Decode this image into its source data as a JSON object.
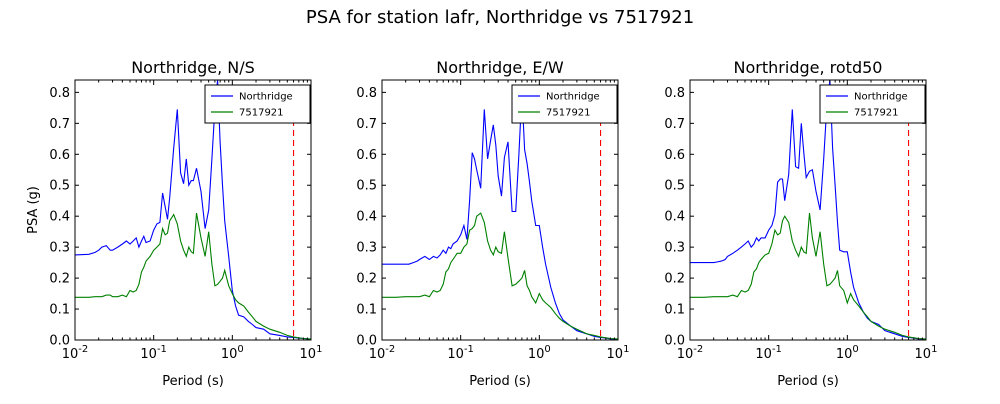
{
  "figure": {
    "suptitle": "PSA for station lafr, Northridge vs 7517921"
  },
  "chart_data": [
    {
      "type": "line",
      "title": "Northridge, N/S",
      "xlabel": "Period (s)",
      "ylabel": "PSA (g)",
      "xscale": "log",
      "xlim": [
        0.01,
        10
      ],
      "ylim": [
        0,
        0.84
      ],
      "x_tick_labels": [
        "10^-2",
        "10^-1",
        "10^0",
        "10^1"
      ],
      "y_ticks": [
        0.0,
        0.1,
        0.2,
        0.3,
        0.4,
        0.5,
        0.6,
        0.7,
        0.8
      ],
      "legend_position": "top-right",
      "reference_line": {
        "x": 6.0,
        "color": "#ff0000",
        "style": "dashed"
      },
      "series": [
        {
          "name": "Northridge",
          "color": "#0000ff",
          "x": [
            0.01,
            0.015,
            0.018,
            0.02,
            0.022,
            0.025,
            0.028,
            0.03,
            0.035,
            0.04,
            0.045,
            0.05,
            0.055,
            0.06,
            0.065,
            0.07,
            0.075,
            0.08,
            0.09,
            0.1,
            0.11,
            0.12,
            0.13,
            0.14,
            0.15,
            0.16,
            0.18,
            0.2,
            0.22,
            0.24,
            0.26,
            0.28,
            0.3,
            0.32,
            0.35,
            0.4,
            0.45,
            0.5,
            0.55,
            0.6,
            0.65,
            0.7,
            0.75,
            0.8,
            0.9,
            1.0,
            1.1,
            1.2,
            1.4,
            1.6,
            1.8,
            2.0,
            2.5,
            3.0,
            4.0,
            5.0,
            6.0,
            7.0,
            8.0,
            10.0
          ],
          "y": [
            0.275,
            0.277,
            0.283,
            0.29,
            0.3,
            0.305,
            0.29,
            0.29,
            0.3,
            0.31,
            0.32,
            0.31,
            0.32,
            0.33,
            0.3,
            0.32,
            0.335,
            0.315,
            0.32,
            0.355,
            0.375,
            0.38,
            0.475,
            0.43,
            0.39,
            0.46,
            0.62,
            0.745,
            0.54,
            0.505,
            0.585,
            0.5,
            0.515,
            0.515,
            0.555,
            0.48,
            0.36,
            0.42,
            0.585,
            0.75,
            0.84,
            0.64,
            0.5,
            0.385,
            0.27,
            0.16,
            0.11,
            0.08,
            0.075,
            0.06,
            0.05,
            0.04,
            0.035,
            0.02,
            0.015,
            0.01,
            0.008,
            0.006,
            0.005,
            0.003
          ]
        },
        {
          "name": "7517921",
          "color": "#008000",
          "x": [
            0.01,
            0.015,
            0.018,
            0.02,
            0.022,
            0.025,
            0.028,
            0.03,
            0.035,
            0.04,
            0.045,
            0.05,
            0.055,
            0.06,
            0.065,
            0.07,
            0.075,
            0.08,
            0.09,
            0.1,
            0.11,
            0.12,
            0.13,
            0.14,
            0.15,
            0.16,
            0.18,
            0.2,
            0.22,
            0.24,
            0.26,
            0.28,
            0.3,
            0.32,
            0.35,
            0.4,
            0.45,
            0.5,
            0.55,
            0.6,
            0.65,
            0.7,
            0.75,
            0.8,
            0.9,
            1.0,
            1.1,
            1.2,
            1.4,
            1.6,
            1.8,
            2.0,
            2.5,
            3.0,
            4.0,
            5.0,
            6.0,
            7.0,
            8.0,
            10.0
          ],
          "y": [
            0.138,
            0.138,
            0.14,
            0.14,
            0.14,
            0.145,
            0.145,
            0.14,
            0.14,
            0.145,
            0.14,
            0.16,
            0.155,
            0.16,
            0.18,
            0.22,
            0.235,
            0.255,
            0.27,
            0.29,
            0.3,
            0.31,
            0.36,
            0.34,
            0.345,
            0.385,
            0.405,
            0.375,
            0.32,
            0.29,
            0.27,
            0.3,
            0.285,
            0.28,
            0.41,
            0.33,
            0.27,
            0.35,
            0.245,
            0.175,
            0.18,
            0.19,
            0.2,
            0.225,
            0.175,
            0.15,
            0.13,
            0.12,
            0.11,
            0.09,
            0.075,
            0.06,
            0.045,
            0.035,
            0.025,
            0.015,
            0.01,
            0.007,
            0.005,
            0.003
          ]
        }
      ]
    },
    {
      "type": "line",
      "title": "Northridge, E/W",
      "xlabel": "Period (s)",
      "ylabel": "",
      "xscale": "log",
      "xlim": [
        0.01,
        10
      ],
      "ylim": [
        0,
        0.84
      ],
      "x_tick_labels": [
        "10^-2",
        "10^-1",
        "10^0",
        "10^1"
      ],
      "y_ticks": [
        0.0,
        0.1,
        0.2,
        0.3,
        0.4,
        0.5,
        0.6,
        0.7,
        0.8
      ],
      "legend_position": "top-right",
      "reference_line": {
        "x": 6.0,
        "color": "#ff0000",
        "style": "dashed"
      },
      "series": [
        {
          "name": "Northridge",
          "color": "#0000ff",
          "x": [
            0.01,
            0.015,
            0.02,
            0.022,
            0.025,
            0.028,
            0.03,
            0.035,
            0.04,
            0.045,
            0.05,
            0.055,
            0.06,
            0.065,
            0.07,
            0.075,
            0.08,
            0.09,
            0.1,
            0.11,
            0.12,
            0.13,
            0.14,
            0.15,
            0.16,
            0.18,
            0.2,
            0.22,
            0.24,
            0.26,
            0.28,
            0.3,
            0.33,
            0.36,
            0.4,
            0.45,
            0.5,
            0.55,
            0.6,
            0.65,
            0.7,
            0.75,
            0.8,
            0.9,
            1.0,
            1.1,
            1.2,
            1.4,
            1.6,
            1.8,
            2.0,
            2.5,
            3.0,
            4.0,
            5.0,
            6.0,
            7.0,
            8.0,
            10.0
          ],
          "y": [
            0.245,
            0.245,
            0.245,
            0.245,
            0.25,
            0.255,
            0.26,
            0.27,
            0.26,
            0.27,
            0.265,
            0.275,
            0.29,
            0.28,
            0.3,
            0.295,
            0.31,
            0.32,
            0.34,
            0.37,
            0.325,
            0.45,
            0.605,
            0.585,
            0.55,
            0.49,
            0.745,
            0.585,
            0.645,
            0.695,
            0.63,
            0.53,
            0.465,
            0.59,
            0.64,
            0.415,
            0.415,
            0.6,
            0.8,
            0.615,
            0.57,
            0.51,
            0.45,
            0.37,
            0.37,
            0.3,
            0.245,
            0.17,
            0.12,
            0.085,
            0.065,
            0.045,
            0.03,
            0.02,
            0.012,
            0.008,
            0.006,
            0.004,
            0.003
          ]
        },
        {
          "name": "7517921",
          "color": "#008000",
          "x": [
            0.01,
            0.015,
            0.02,
            0.022,
            0.025,
            0.028,
            0.03,
            0.035,
            0.04,
            0.045,
            0.05,
            0.055,
            0.06,
            0.065,
            0.07,
            0.075,
            0.08,
            0.09,
            0.1,
            0.11,
            0.12,
            0.13,
            0.14,
            0.15,
            0.16,
            0.18,
            0.2,
            0.22,
            0.24,
            0.26,
            0.28,
            0.3,
            0.33,
            0.36,
            0.4,
            0.45,
            0.5,
            0.55,
            0.6,
            0.65,
            0.7,
            0.75,
            0.8,
            0.9,
            1.0,
            1.1,
            1.2,
            1.4,
            1.6,
            1.8,
            2.0,
            2.5,
            3.0,
            4.0,
            5.0,
            6.0,
            7.0,
            8.0,
            10.0
          ],
          "y": [
            0.138,
            0.138,
            0.14,
            0.14,
            0.14,
            0.14,
            0.14,
            0.145,
            0.14,
            0.16,
            0.155,
            0.16,
            0.18,
            0.22,
            0.23,
            0.25,
            0.26,
            0.28,
            0.28,
            0.3,
            0.31,
            0.355,
            0.36,
            0.37,
            0.4,
            0.41,
            0.38,
            0.32,
            0.29,
            0.275,
            0.3,
            0.285,
            0.28,
            0.35,
            0.265,
            0.175,
            0.18,
            0.19,
            0.2,
            0.225,
            0.175,
            0.16,
            0.14,
            0.12,
            0.15,
            0.13,
            0.12,
            0.105,
            0.085,
            0.07,
            0.06,
            0.045,
            0.035,
            0.02,
            0.015,
            0.01,
            0.007,
            0.005,
            0.003
          ]
        }
      ]
    },
    {
      "type": "line",
      "title": "Northridge, rotd50",
      "xlabel": "Period (s)",
      "ylabel": "",
      "xscale": "log",
      "xlim": [
        0.01,
        10
      ],
      "ylim": [
        0,
        0.84
      ],
      "x_tick_labels": [
        "10^-2",
        "10^-1",
        "10^0",
        "10^1"
      ],
      "y_ticks": [
        0.0,
        0.1,
        0.2,
        0.3,
        0.4,
        0.5,
        0.6,
        0.7,
        0.8
      ],
      "legend_position": "top-right",
      "reference_line": {
        "x": 6.0,
        "color": "#ff0000",
        "style": "dashed"
      },
      "series": [
        {
          "name": "Northridge",
          "color": "#0000ff",
          "x": [
            0.01,
            0.015,
            0.02,
            0.022,
            0.025,
            0.028,
            0.03,
            0.035,
            0.04,
            0.045,
            0.05,
            0.055,
            0.06,
            0.065,
            0.07,
            0.075,
            0.08,
            0.09,
            0.1,
            0.11,
            0.12,
            0.13,
            0.14,
            0.15,
            0.16,
            0.18,
            0.2,
            0.22,
            0.24,
            0.26,
            0.28,
            0.3,
            0.33,
            0.36,
            0.4,
            0.45,
            0.5,
            0.55,
            0.6,
            0.65,
            0.7,
            0.75,
            0.8,
            0.9,
            1.0,
            1.1,
            1.2,
            1.4,
            1.6,
            1.8,
            2.0,
            2.5,
            3.0,
            4.0,
            5.0,
            6.0,
            7.0,
            8.0,
            10.0
          ],
          "y": [
            0.25,
            0.25,
            0.25,
            0.252,
            0.255,
            0.26,
            0.27,
            0.28,
            0.29,
            0.3,
            0.31,
            0.32,
            0.3,
            0.31,
            0.33,
            0.32,
            0.33,
            0.33,
            0.355,
            0.37,
            0.405,
            0.51,
            0.52,
            0.52,
            0.45,
            0.535,
            0.745,
            0.56,
            0.555,
            0.7,
            0.605,
            0.525,
            0.545,
            0.55,
            0.48,
            0.42,
            0.585,
            0.76,
            0.84,
            0.62,
            0.5,
            0.38,
            0.29,
            0.285,
            0.285,
            0.22,
            0.17,
            0.12,
            0.09,
            0.07,
            0.06,
            0.05,
            0.03,
            0.02,
            0.012,
            0.008,
            0.006,
            0.004,
            0.003
          ]
        },
        {
          "name": "7517921",
          "color": "#008000",
          "x": [
            0.01,
            0.015,
            0.02,
            0.022,
            0.025,
            0.028,
            0.03,
            0.035,
            0.04,
            0.045,
            0.05,
            0.055,
            0.06,
            0.065,
            0.07,
            0.075,
            0.08,
            0.09,
            0.1,
            0.11,
            0.12,
            0.13,
            0.14,
            0.15,
            0.16,
            0.18,
            0.2,
            0.22,
            0.24,
            0.26,
            0.28,
            0.3,
            0.33,
            0.36,
            0.4,
            0.45,
            0.5,
            0.55,
            0.6,
            0.65,
            0.7,
            0.75,
            0.8,
            0.9,
            1.0,
            1.1,
            1.2,
            1.4,
            1.6,
            1.8,
            2.0,
            2.5,
            3.0,
            4.0,
            5.0,
            6.0,
            7.0,
            8.0,
            10.0
          ],
          "y": [
            0.138,
            0.138,
            0.14,
            0.14,
            0.14,
            0.14,
            0.14,
            0.145,
            0.14,
            0.16,
            0.155,
            0.16,
            0.18,
            0.22,
            0.23,
            0.25,
            0.26,
            0.275,
            0.28,
            0.31,
            0.355,
            0.34,
            0.345,
            0.385,
            0.4,
            0.38,
            0.32,
            0.29,
            0.27,
            0.3,
            0.285,
            0.28,
            0.41,
            0.33,
            0.27,
            0.35,
            0.245,
            0.175,
            0.18,
            0.19,
            0.2,
            0.225,
            0.175,
            0.16,
            0.12,
            0.15,
            0.13,
            0.11,
            0.09,
            0.075,
            0.06,
            0.045,
            0.035,
            0.025,
            0.015,
            0.01,
            0.007,
            0.005,
            0.003
          ]
        }
      ]
    }
  ]
}
